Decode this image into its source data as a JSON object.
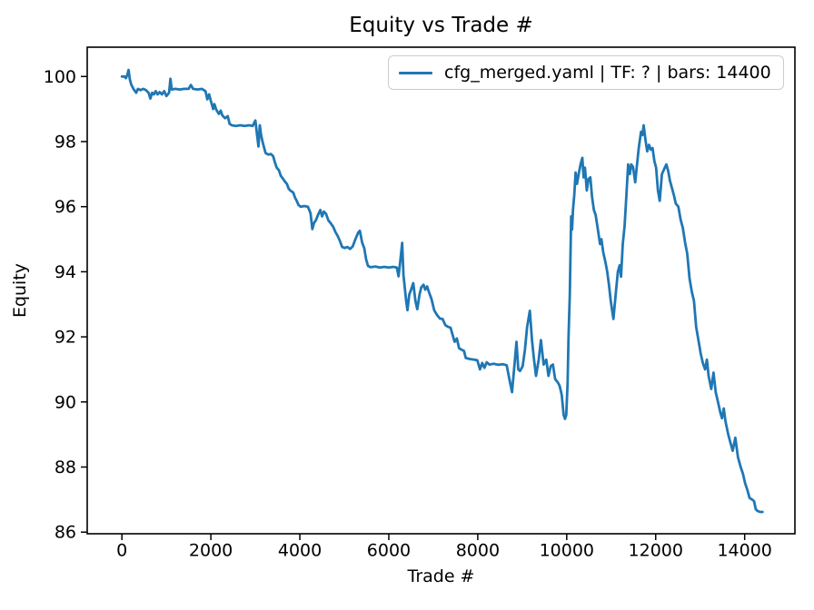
{
  "figure_title": "Equity vs Trade #",
  "colors": {
    "line": "#1f77b4",
    "axis": "#000000",
    "background": "#ffffff",
    "legend_border": "#cccccc",
    "text": "#000000"
  },
  "legend": {
    "label": "cfg_merged.yaml | TF: ? | bars: 14400",
    "position": "upper right"
  },
  "chart_data": {
    "type": "line",
    "title": "Equity vs Trade #",
    "xlabel": "Trade #",
    "ylabel": "Equity",
    "grid": false,
    "legend_position": "upper right",
    "x_ticks": [
      0,
      2000,
      4000,
      6000,
      8000,
      10000,
      12000,
      14000
    ],
    "y_ticks": [
      86,
      88,
      90,
      92,
      94,
      96,
      98,
      100
    ],
    "xlim": [
      -780,
      15130
    ],
    "ylim": [
      85.95,
      100.9
    ],
    "series": [
      {
        "name": "cfg_merged.yaml | TF: ? | bars: 14400",
        "color": "#1f77b4",
        "points": [
          [
            0,
            100
          ],
          [
            60,
            100
          ],
          [
            90,
            99.95
          ],
          [
            120,
            100.05
          ],
          [
            150,
            100.2
          ],
          [
            180,
            99.9
          ],
          [
            210,
            99.75
          ],
          [
            260,
            99.62
          ],
          [
            320,
            99.5
          ],
          [
            360,
            99.62
          ],
          [
            420,
            99.58
          ],
          [
            480,
            99.62
          ],
          [
            540,
            99.58
          ],
          [
            600,
            99.5
          ],
          [
            640,
            99.32
          ],
          [
            680,
            99.5
          ],
          [
            720,
            99.45
          ],
          [
            760,
            99.55
          ],
          [
            800,
            99.45
          ],
          [
            850,
            99.52
          ],
          [
            900,
            99.45
          ],
          [
            950,
            99.55
          ],
          [
            1000,
            99.4
          ],
          [
            1060,
            99.5
          ],
          [
            1090,
            99.93
          ],
          [
            1120,
            99.6
          ],
          [
            1200,
            99.62
          ],
          [
            1300,
            99.6
          ],
          [
            1400,
            99.62
          ],
          [
            1500,
            99.62
          ],
          [
            1550,
            99.74
          ],
          [
            1600,
            99.62
          ],
          [
            1700,
            99.6
          ],
          [
            1800,
            99.62
          ],
          [
            1880,
            99.55
          ],
          [
            1920,
            99.3
          ],
          [
            1960,
            99.45
          ],
          [
            2000,
            99.25
          ],
          [
            2050,
            99.0
          ],
          [
            2080,
            99.15
          ],
          [
            2120,
            98.98
          ],
          [
            2180,
            98.85
          ],
          [
            2220,
            98.95
          ],
          [
            2260,
            98.8
          ],
          [
            2320,
            98.72
          ],
          [
            2380,
            98.78
          ],
          [
            2420,
            98.55
          ],
          [
            2470,
            98.5
          ],
          [
            2560,
            98.48
          ],
          [
            2660,
            98.5
          ],
          [
            2760,
            98.48
          ],
          [
            2860,
            98.5
          ],
          [
            2940,
            98.48
          ],
          [
            3000,
            98.65
          ],
          [
            3040,
            98.2
          ],
          [
            3070,
            97.85
          ],
          [
            3100,
            98.5
          ],
          [
            3130,
            98.2
          ],
          [
            3170,
            97.95
          ],
          [
            3230,
            97.65
          ],
          [
            3290,
            97.6
          ],
          [
            3350,
            97.62
          ],
          [
            3400,
            97.55
          ],
          [
            3440,
            97.36
          ],
          [
            3480,
            97.2
          ],
          [
            3530,
            97.12
          ],
          [
            3570,
            96.95
          ],
          [
            3610,
            96.88
          ],
          [
            3660,
            96.78
          ],
          [
            3710,
            96.7
          ],
          [
            3750,
            96.55
          ],
          [
            3800,
            96.48
          ],
          [
            3850,
            96.44
          ],
          [
            3890,
            96.28
          ],
          [
            3930,
            96.18
          ],
          [
            3970,
            96.05
          ],
          [
            4020,
            96.0
          ],
          [
            4100,
            96.02
          ],
          [
            4180,
            96.0
          ],
          [
            4240,
            95.8
          ],
          [
            4280,
            95.31
          ],
          [
            4320,
            95.5
          ],
          [
            4360,
            95.58
          ],
          [
            4410,
            95.75
          ],
          [
            4460,
            95.9
          ],
          [
            4500,
            95.7
          ],
          [
            4540,
            95.85
          ],
          [
            4590,
            95.78
          ],
          [
            4640,
            95.58
          ],
          [
            4700,
            95.48
          ],
          [
            4750,
            95.38
          ],
          [
            4800,
            95.22
          ],
          [
            4850,
            95.1
          ],
          [
            4900,
            94.95
          ],
          [
            4950,
            94.76
          ],
          [
            5010,
            94.73
          ],
          [
            5070,
            94.76
          ],
          [
            5130,
            94.7
          ],
          [
            5190,
            94.78
          ],
          [
            5250,
            95.0
          ],
          [
            5310,
            95.2
          ],
          [
            5350,
            95.26
          ],
          [
            5400,
            94.9
          ],
          [
            5450,
            94.72
          ],
          [
            5490,
            94.38
          ],
          [
            5530,
            94.18
          ],
          [
            5590,
            94.14
          ],
          [
            5700,
            94.16
          ],
          [
            5800,
            94.13
          ],
          [
            5900,
            94.15
          ],
          [
            6000,
            94.13
          ],
          [
            6100,
            94.15
          ],
          [
            6180,
            94.13
          ],
          [
            6220,
            93.86
          ],
          [
            6260,
            94.35
          ],
          [
            6300,
            94.89
          ],
          [
            6330,
            93.9
          ],
          [
            6360,
            93.5
          ],
          [
            6390,
            93.1
          ],
          [
            6420,
            92.82
          ],
          [
            6460,
            93.3
          ],
          [
            6500,
            93.45
          ],
          [
            6550,
            93.65
          ],
          [
            6600,
            93.1
          ],
          [
            6640,
            92.85
          ],
          [
            6690,
            93.3
          ],
          [
            6730,
            93.52
          ],
          [
            6780,
            93.6
          ],
          [
            6820,
            93.45
          ],
          [
            6860,
            93.55
          ],
          [
            6910,
            93.35
          ],
          [
            6960,
            93.16
          ],
          [
            7020,
            92.82
          ],
          [
            7080,
            92.68
          ],
          [
            7150,
            92.56
          ],
          [
            7210,
            92.55
          ],
          [
            7270,
            92.36
          ],
          [
            7330,
            92.31
          ],
          [
            7390,
            92.28
          ],
          [
            7440,
            92.03
          ],
          [
            7480,
            91.85
          ],
          [
            7530,
            91.95
          ],
          [
            7580,
            91.65
          ],
          [
            7640,
            91.6
          ],
          [
            7690,
            91.57
          ],
          [
            7730,
            91.35
          ],
          [
            7820,
            91.32
          ],
          [
            7920,
            91.3
          ],
          [
            7990,
            91.28
          ],
          [
            8050,
            91.0
          ],
          [
            8100,
            91.2
          ],
          [
            8150,
            91.05
          ],
          [
            8200,
            91.22
          ],
          [
            8260,
            91.15
          ],
          [
            8360,
            91.17
          ],
          [
            8460,
            91.14
          ],
          [
            8560,
            91.16
          ],
          [
            8650,
            91.13
          ],
          [
            8710,
            90.7
          ],
          [
            8770,
            90.3
          ],
          [
            8830,
            91.2
          ],
          [
            8870,
            91.85
          ],
          [
            8910,
            91.0
          ],
          [
            8950,
            90.95
          ],
          [
            9010,
            91.1
          ],
          [
            9060,
            91.6
          ],
          [
            9110,
            92.3
          ],
          [
            9170,
            92.8
          ],
          [
            9220,
            91.9
          ],
          [
            9260,
            91.35
          ],
          [
            9310,
            90.8
          ],
          [
            9370,
            91.3
          ],
          [
            9420,
            91.9
          ],
          [
            9480,
            91.15
          ],
          [
            9540,
            91.3
          ],
          [
            9590,
            90.8
          ],
          [
            9640,
            91.1
          ],
          [
            9690,
            91.15
          ],
          [
            9740,
            90.7
          ],
          [
            9800,
            90.6
          ],
          [
            9840,
            90.5
          ],
          [
            9890,
            90.2
          ],
          [
            9930,
            89.6
          ],
          [
            9960,
            89.48
          ],
          [
            9990,
            89.6
          ],
          [
            10020,
            90.6
          ],
          [
            10040,
            92.0
          ],
          [
            10070,
            93.3
          ],
          [
            10100,
            95.7
          ],
          [
            10120,
            95.3
          ],
          [
            10140,
            95.9
          ],
          [
            10170,
            96.35
          ],
          [
            10200,
            97.05
          ],
          [
            10230,
            96.7
          ],
          [
            10270,
            97.0
          ],
          [
            10310,
            97.3
          ],
          [
            10350,
            97.5
          ],
          [
            10380,
            96.9
          ],
          [
            10410,
            97.2
          ],
          [
            10450,
            96.5
          ],
          [
            10490,
            96.85
          ],
          [
            10530,
            96.9
          ],
          [
            10570,
            96.3
          ],
          [
            10610,
            95.9
          ],
          [
            10650,
            95.75
          ],
          [
            10700,
            95.3
          ],
          [
            10750,
            94.85
          ],
          [
            10780,
            95.0
          ],
          [
            10820,
            94.6
          ],
          [
            10870,
            94.3
          ],
          [
            10910,
            94.0
          ],
          [
            10950,
            93.6
          ],
          [
            10990,
            93.1
          ],
          [
            11050,
            92.55
          ],
          [
            11110,
            93.45
          ],
          [
            11150,
            94.0
          ],
          [
            11190,
            94.2
          ],
          [
            11220,
            93.85
          ],
          [
            11260,
            94.85
          ],
          [
            11300,
            95.4
          ],
          [
            11340,
            96.3
          ],
          [
            11380,
            97.3
          ],
          [
            11420,
            97.0
          ],
          [
            11450,
            97.3
          ],
          [
            11490,
            97.22
          ],
          [
            11540,
            96.75
          ],
          [
            11580,
            97.3
          ],
          [
            11620,
            97.8
          ],
          [
            11670,
            98.3
          ],
          [
            11700,
            98.2
          ],
          [
            11730,
            98.5
          ],
          [
            11770,
            98.05
          ],
          [
            11810,
            97.7
          ],
          [
            11850,
            97.9
          ],
          [
            11890,
            97.75
          ],
          [
            11930,
            97.8
          ],
          [
            11970,
            97.4
          ],
          [
            12010,
            97.2
          ],
          [
            12050,
            96.5
          ],
          [
            12090,
            96.18
          ],
          [
            12140,
            97.0
          ],
          [
            12190,
            97.15
          ],
          [
            12240,
            97.3
          ],
          [
            12280,
            97.1
          ],
          [
            12320,
            96.8
          ],
          [
            12360,
            96.6
          ],
          [
            12410,
            96.35
          ],
          [
            12450,
            96.1
          ],
          [
            12510,
            96.0
          ],
          [
            12560,
            95.6
          ],
          [
            12610,
            95.35
          ],
          [
            12660,
            94.9
          ],
          [
            12710,
            94.55
          ],
          [
            12760,
            93.8
          ],
          [
            12810,
            93.4
          ],
          [
            12860,
            93.1
          ],
          [
            12910,
            92.3
          ],
          [
            12960,
            91.9
          ],
          [
            13010,
            91.5
          ],
          [
            13060,
            91.2
          ],
          [
            13110,
            91.0
          ],
          [
            13150,
            91.3
          ],
          [
            13190,
            90.8
          ],
          [
            13250,
            90.4
          ],
          [
            13300,
            90.9
          ],
          [
            13350,
            90.3
          ],
          [
            13400,
            90.0
          ],
          [
            13450,
            89.7
          ],
          [
            13490,
            89.5
          ],
          [
            13530,
            89.8
          ],
          [
            13570,
            89.4
          ],
          [
            13630,
            89.0
          ],
          [
            13670,
            88.8
          ],
          [
            13730,
            88.5
          ],
          [
            13790,
            88.9
          ],
          [
            13850,
            88.3
          ],
          [
            13910,
            88.0
          ],
          [
            13960,
            87.8
          ],
          [
            14010,
            87.5
          ],
          [
            14060,
            87.3
          ],
          [
            14110,
            87.05
          ],
          [
            14170,
            87.0
          ],
          [
            14210,
            86.95
          ],
          [
            14250,
            86.7
          ],
          [
            14290,
            86.65
          ],
          [
            14350,
            86.62
          ],
          [
            14400,
            86.62
          ]
        ]
      }
    ]
  }
}
